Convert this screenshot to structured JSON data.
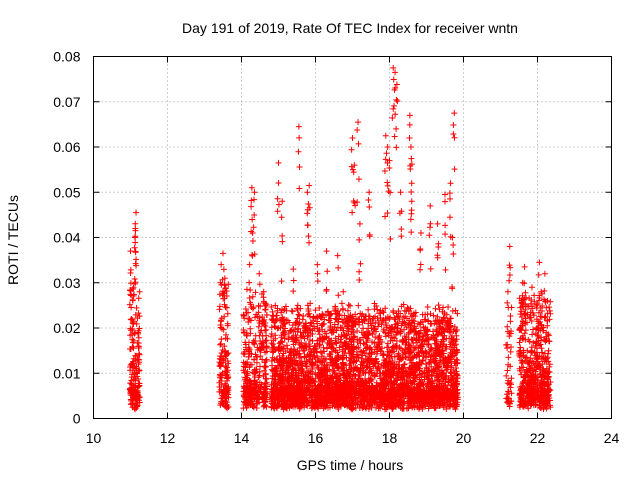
{
  "chart_data": {
    "type": "scatter",
    "title": "Day 191 of 2019, Rate Of TEC Index for receiver wntn",
    "xlabel": "GPS time / hours",
    "ylabel": "ROTI / TECUs",
    "xlim": [
      10,
      24
    ],
    "ylim": [
      0,
      0.08
    ],
    "x_ticks": [
      10,
      12,
      14,
      16,
      18,
      20,
      22,
      24
    ],
    "x_tick_labels": [
      "10",
      "12",
      "14",
      "16",
      "18",
      "20",
      "22",
      "24"
    ],
    "y_ticks": [
      0,
      0.01,
      0.02,
      0.03,
      0.04,
      0.05,
      0.06,
      0.07,
      0.08
    ],
    "y_tick_labels": [
      "0",
      "0.01",
      "0.02",
      "0.03",
      "0.04",
      "0.05",
      "0.06",
      "0.07",
      "0.08"
    ],
    "grid": true,
    "marker": "plus",
    "series": [
      {
        "name": "ROTI",
        "color": "#ff0000",
        "clusters": [
          {
            "x_start": 10.98,
            "x_end": 11.25,
            "count": 170,
            "typical_max": 0.028,
            "peaks": [
              [
                11.15,
                0.0455
              ],
              [
                11.13,
                0.042
              ],
              [
                11.12,
                0.04
              ],
              [
                11.0,
                0.037
              ],
              [
                11.2,
                0.019
              ]
            ]
          },
          {
            "x_start": 13.4,
            "x_end": 13.65,
            "count": 130,
            "typical_max": 0.028,
            "peaks": [
              [
                13.5,
                0.0365
              ],
              [
                13.45,
                0.034
              ],
              [
                13.55,
                0.031
              ]
            ]
          },
          {
            "x_start": 14.05,
            "x_end": 14.7,
            "count": 330,
            "typical_max": 0.025,
            "peaks": [
              [
                14.28,
                0.051
              ],
              [
                14.35,
                0.05
              ],
              [
                14.3,
                0.041
              ],
              [
                14.22,
                0.034
              ],
              [
                14.48,
                0.032
              ],
              [
                14.6,
                0.028
              ]
            ]
          },
          {
            "x_start": 14.8,
            "x_end": 16.9,
            "count": 1500,
            "typical_max": 0.022,
            "peaks": [
              [
                15.55,
                0.0645
              ],
              [
                15.0,
                0.0565
              ],
              [
                15.83,
                0.0515
              ],
              [
                15.78,
                0.05
              ],
              [
                15.1,
                0.048
              ],
              [
                16.3,
                0.037
              ],
              [
                16.6,
                0.036
              ],
              [
                15.4,
                0.033
              ],
              [
                16.05,
                0.034
              ],
              [
                16.75,
                0.028
              ]
            ]
          },
          {
            "x_start": 16.9,
            "x_end": 19.85,
            "count": 2000,
            "typical_max": 0.022,
            "peaks": [
              [
                18.1,
                0.0775
              ],
              [
                18.15,
                0.0765
              ],
              [
                18.2,
                0.0738
              ],
              [
                17.15,
                0.0655
              ],
              [
                18.55,
                0.067
              ],
              [
                19.75,
                0.0675
              ],
              [
                17.0,
                0.062
              ],
              [
                17.9,
                0.0625
              ],
              [
                17.95,
                0.06
              ],
              [
                18.58,
                0.06
              ],
              [
                18.0,
                0.057
              ],
              [
                17.05,
                0.056
              ],
              [
                19.1,
                0.047
              ],
              [
                19.5,
                0.0495
              ],
              [
                19.65,
                0.052
              ],
              [
                17.45,
                0.05
              ],
              [
                18.6,
                0.052
              ],
              [
                18.3,
                0.05
              ],
              [
                17.2,
                0.043
              ],
              [
                19.3,
                0.043
              ],
              [
                18.85,
                0.041
              ],
              [
                19.7,
                0.04
              ]
            ]
          },
          {
            "x_start": 21.15,
            "x_end": 21.3,
            "count": 40,
            "typical_max": 0.024,
            "peaks": [
              [
                21.25,
                0.038
              ],
              [
                21.2,
                0.028
              ]
            ]
          },
          {
            "x_start": 21.5,
            "x_end": 22.35,
            "count": 520,
            "typical_max": 0.024,
            "peaks": [
              [
                22.05,
                0.0345
              ],
              [
                21.65,
                0.0335
              ],
              [
                22.2,
                0.032
              ],
              [
                21.6,
                0.03
              ],
              [
                21.85,
                0.029
              ],
              [
                22.1,
                0.028
              ]
            ]
          }
        ]
      }
    ]
  }
}
